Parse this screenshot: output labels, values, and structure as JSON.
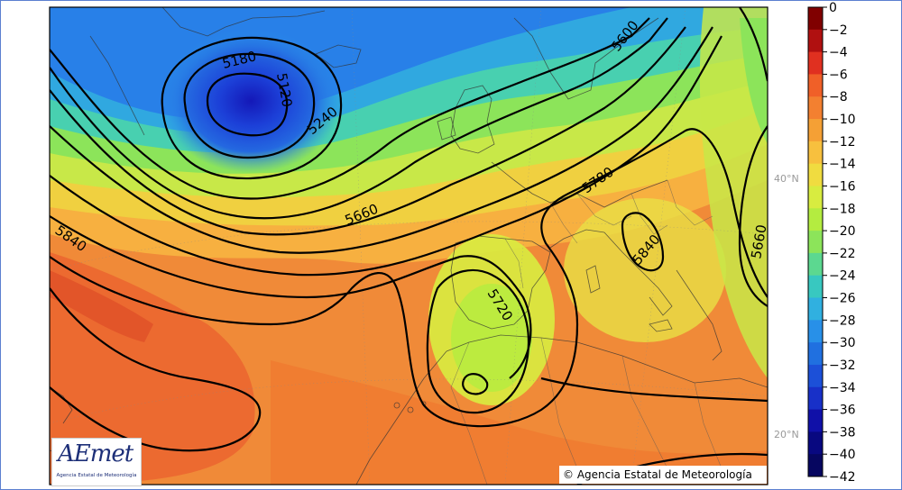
{
  "map": {
    "contour_labels": [
      "5180",
      "5120",
      "5240",
      "5600",
      "5660",
      "5780",
      "5720",
      "5840",
      "5840",
      "5660"
    ],
    "latitude_labels": [
      "40°N",
      "20°N"
    ]
  },
  "colorbar": {
    "ticks": [
      "0",
      "−2",
      "−4",
      "−6",
      "−8",
      "−10",
      "−12",
      "−14",
      "−16",
      "−18",
      "−20",
      "−22",
      "−24",
      "−26",
      "−28",
      "−30",
      "−32",
      "−34",
      "−36",
      "−38",
      "−40",
      "−42"
    ],
    "colors": [
      "#800000",
      "#b01010",
      "#e03020",
      "#f06028",
      "#f38030",
      "#f5a035",
      "#f7c03e",
      "#f0dc40",
      "#d8ec40",
      "#b4ec40",
      "#8ce45a",
      "#5cd890",
      "#38c8c0",
      "#30b0e0",
      "#2890e8",
      "#2070e0",
      "#1c50d8",
      "#1830c8",
      "#1010a8",
      "#080880",
      "#060660"
    ]
  },
  "logo": {
    "text": "AEmet",
    "subtitle": "Agencia Estatal de Meteorología"
  },
  "copyright": "© Agencia Estatal de Meteorología"
}
